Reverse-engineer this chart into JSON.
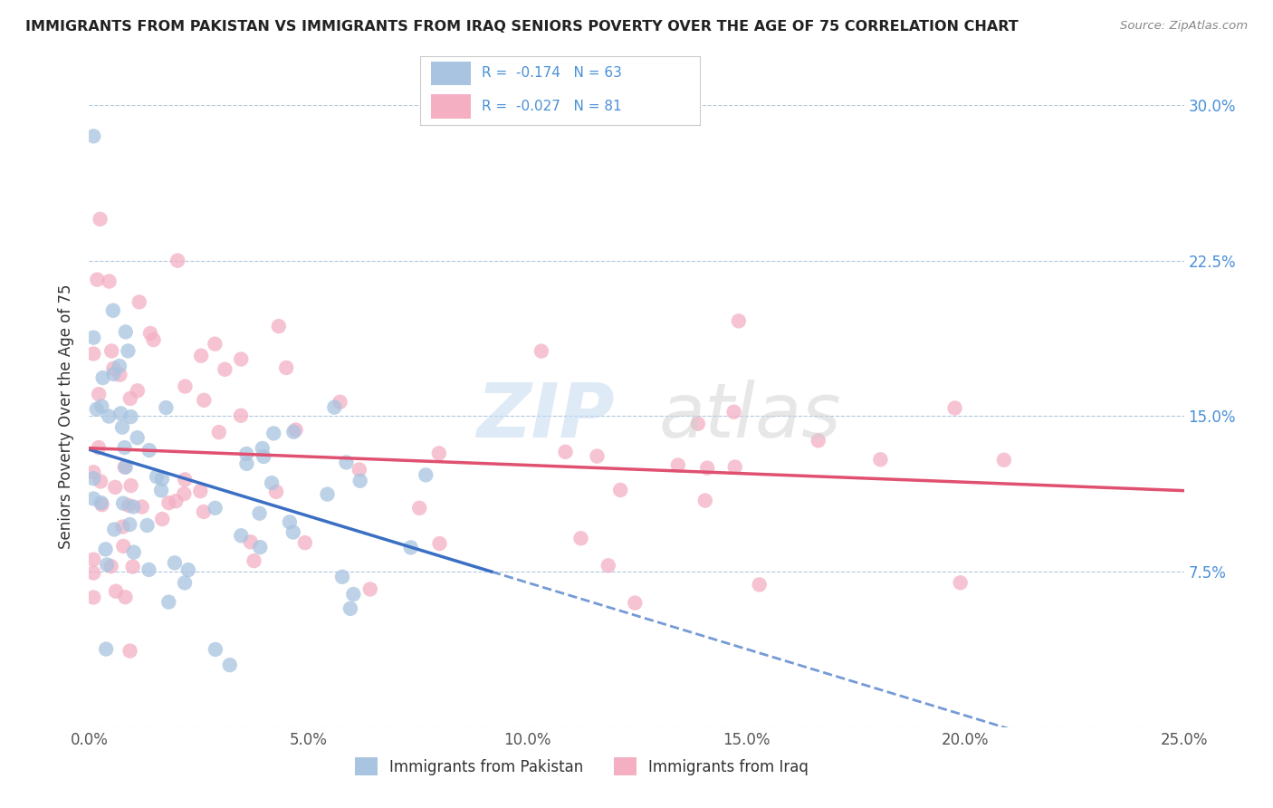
{
  "title": "IMMIGRANTS FROM PAKISTAN VS IMMIGRANTS FROM IRAQ SENIORS POVERTY OVER THE AGE OF 75 CORRELATION CHART",
  "source": "Source: ZipAtlas.com",
  "ylabel": "Seniors Poverty Over the Age of 75",
  "xlim": [
    0.0,
    0.25
  ],
  "ylim": [
    0.0,
    0.3
  ],
  "xticks": [
    0.0,
    0.05,
    0.1,
    0.15,
    0.2,
    0.25
  ],
  "xtick_labels": [
    "0.0%",
    "5.0%",
    "10.0%",
    "15.0%",
    "20.0%",
    "25.0%"
  ],
  "yticks": [
    0.0,
    0.075,
    0.15,
    0.225,
    0.3
  ],
  "ytick_labels": [
    "",
    "7.5%",
    "15.0%",
    "22.5%",
    "30.0%"
  ],
  "pakistan_color": "#a8c4e0",
  "iraq_color": "#f4afc3",
  "pakistan_line_color": "#3a6fc4",
  "iraq_line_color": "#e05070",
  "pakistan_R": -0.174,
  "pakistan_N": 63,
  "iraq_R": -0.027,
  "iraq_N": 81,
  "legend_label_pakistan": "Immigrants from Pakistan",
  "legend_label_iraq": "Immigrants from Iraq",
  "background_color": "#ffffff",
  "grid_color": "#b0c8e0",
  "title_color": "#222222",
  "source_color": "#888888",
  "axis_label_color": "#4a90d9",
  "tick_label_color": "#555555",
  "watermark_zip_color": "#c8ddf0",
  "watermark_atlas_color": "#d0d0d0"
}
